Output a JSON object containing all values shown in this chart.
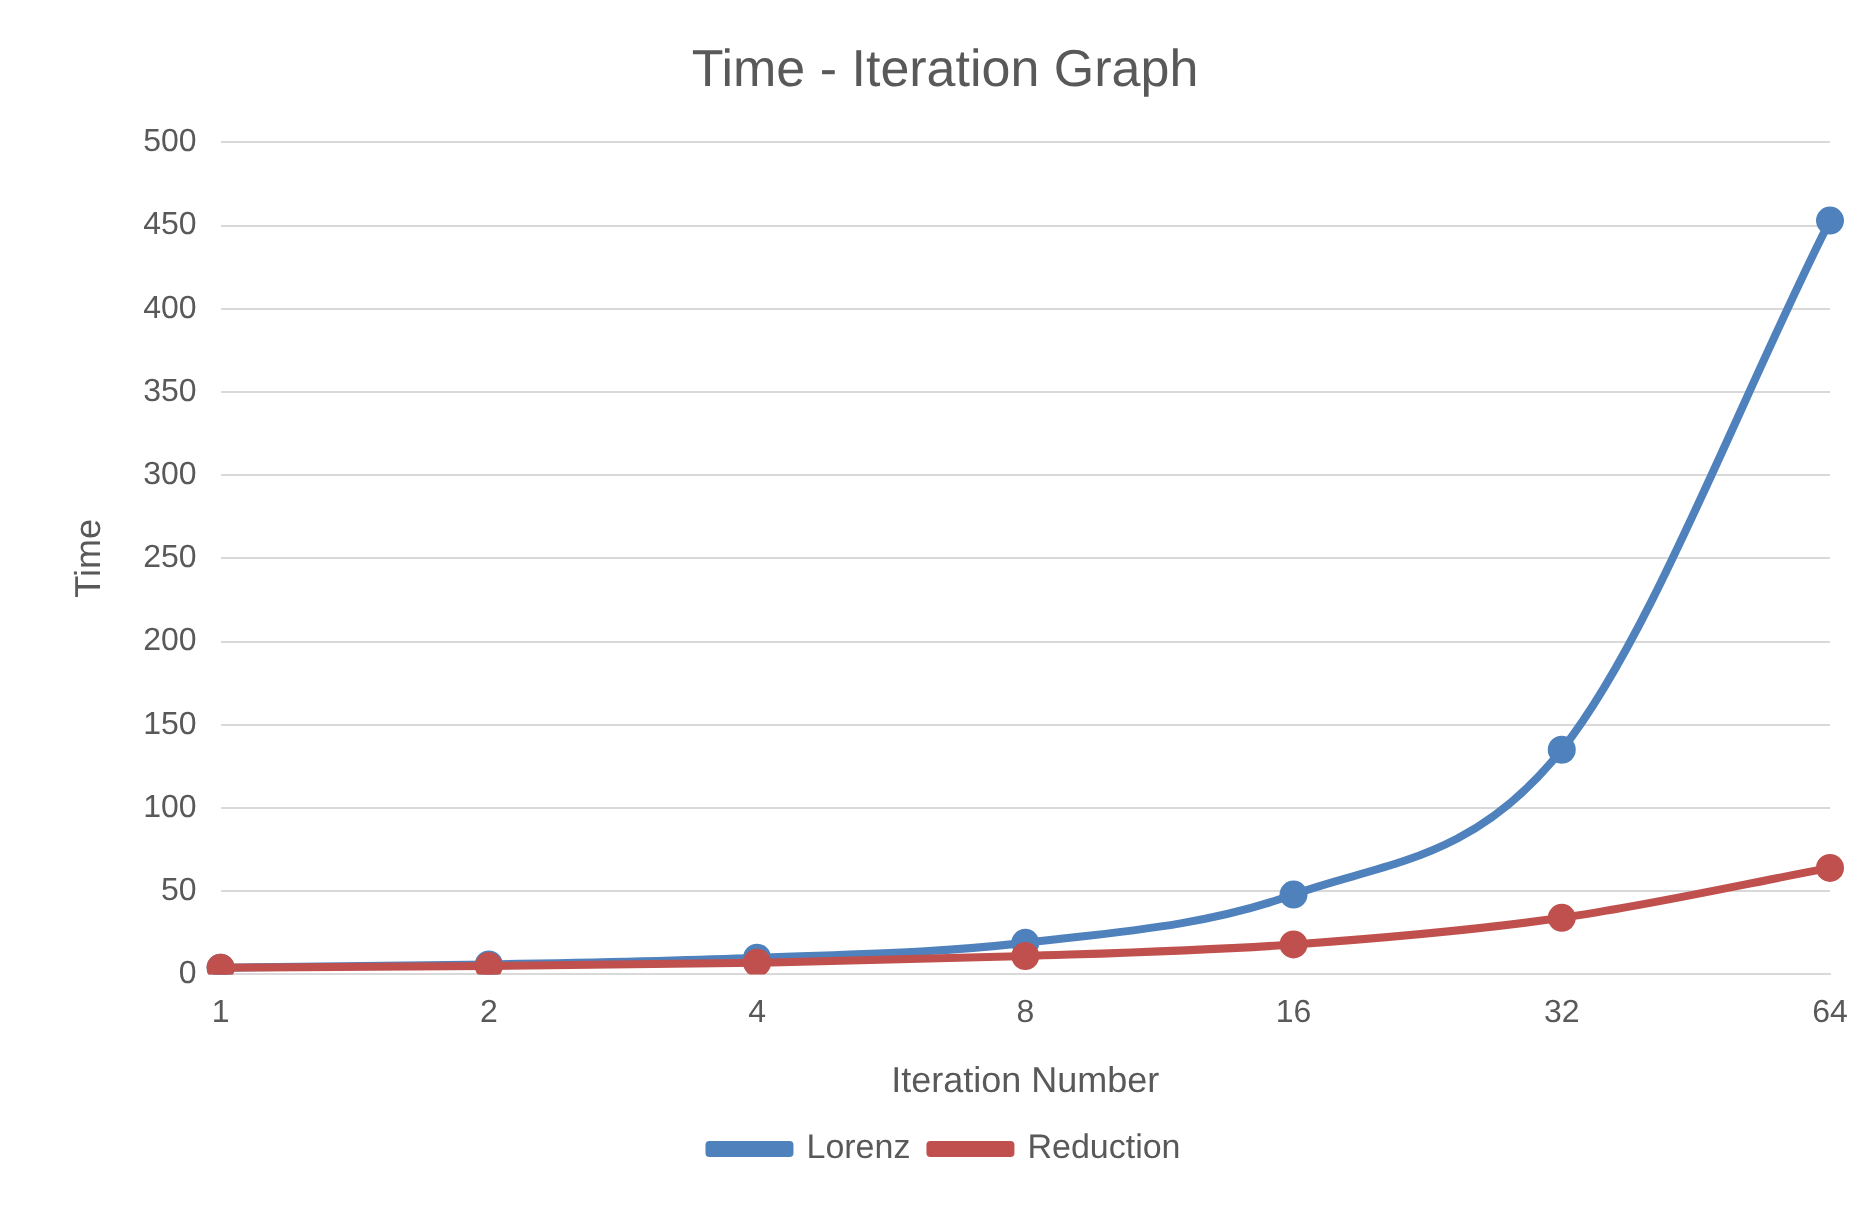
{
  "chart_data": {
    "type": "line",
    "title": "Time - Iteration Graph",
    "xlabel": "Iteration Number",
    "ylabel": "Time",
    "categories": [
      "1",
      "2",
      "4",
      "8",
      "16",
      "32",
      "64"
    ],
    "series": [
      {
        "name": "Lorenz",
        "color": "#4f81bd",
        "values": [
          4,
          6,
          10,
          19,
          48,
          135,
          453
        ]
      },
      {
        "name": "Reduction",
        "color": "#c0504d",
        "values": [
          4,
          5,
          7,
          11,
          18,
          34,
          64
        ]
      }
    ],
    "ylim": [
      0,
      500
    ],
    "yticks": [
      0,
      50,
      100,
      150,
      200,
      250,
      300,
      350,
      400,
      450,
      500
    ],
    "grid": "y",
    "legend": "bottom",
    "marker": "circle",
    "line_style": "solid"
  }
}
